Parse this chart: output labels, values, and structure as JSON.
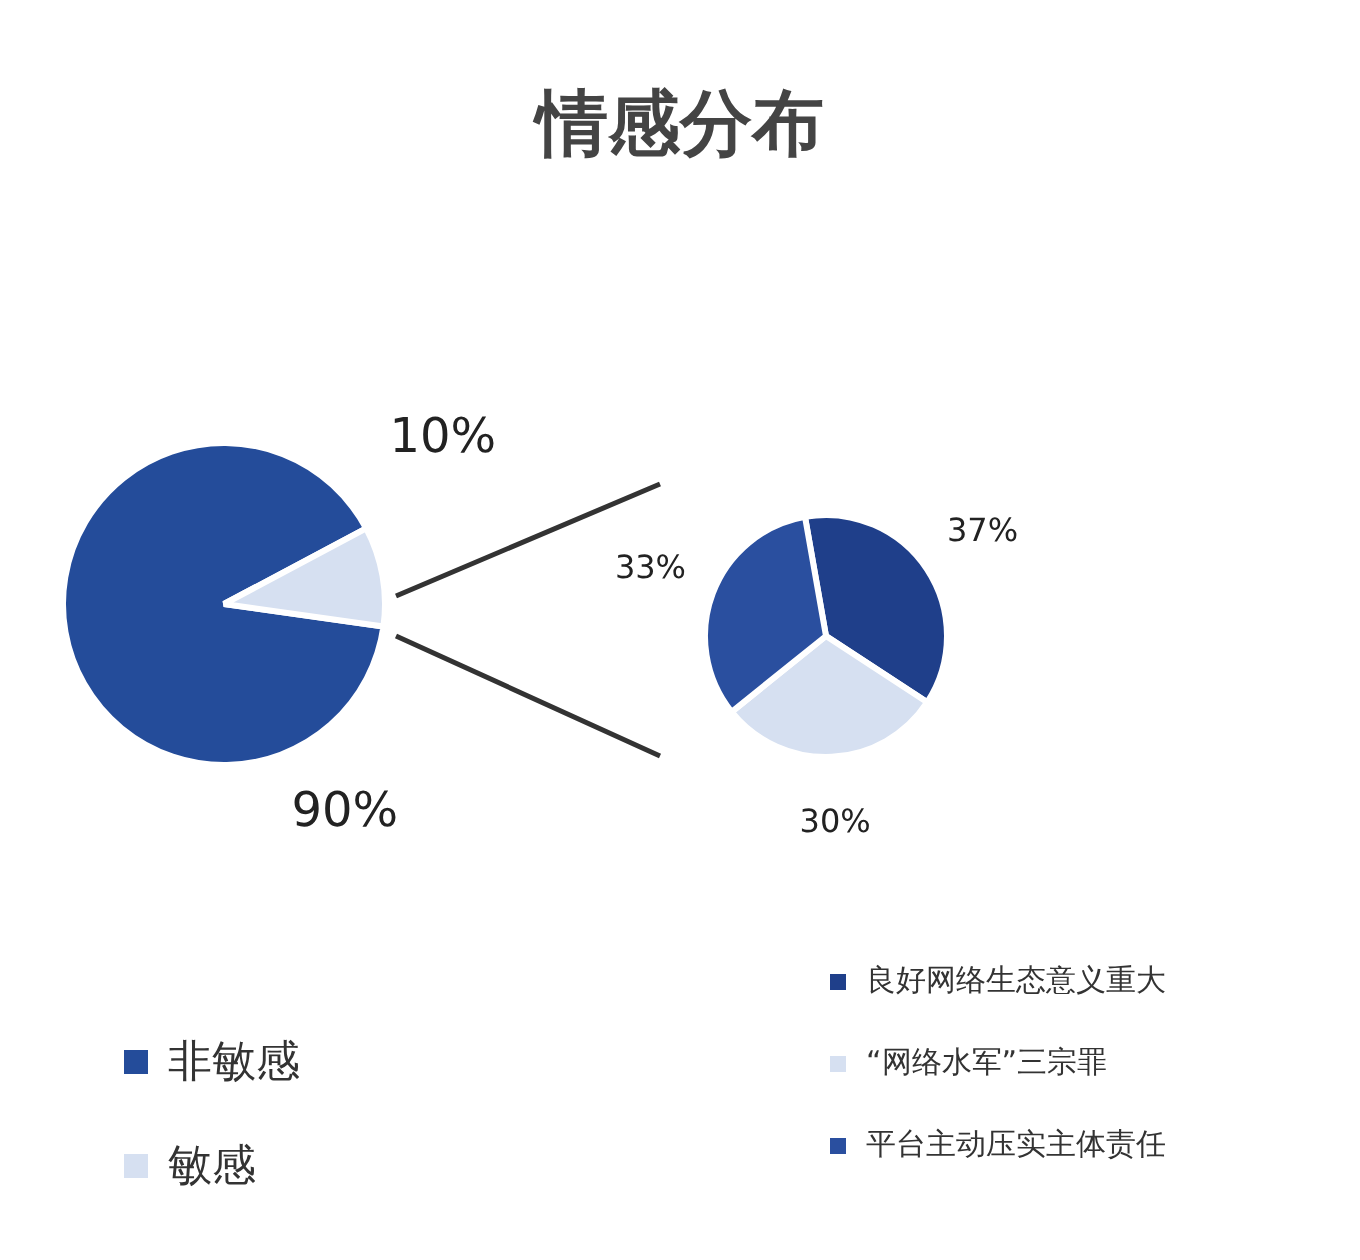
{
  "chart_data": [
    {
      "type": "pie",
      "title": "情感分布",
      "categories": [
        "非敏感",
        "敏感"
      ],
      "values": [
        90,
        10
      ],
      "colors": [
        "#244c9a",
        "#d6e0f1"
      ],
      "value_labels": [
        "90%",
        "10%"
      ],
      "legend": "bottom left"
    },
    {
      "type": "pie",
      "categories": [
        "良好网络生态意义重大",
        "“网络水军”三宗罪",
        "平台主动压实主体责任"
      ],
      "values": [
        37,
        30,
        33
      ],
      "colors": [
        "#1f3f8a",
        "#d6e0f1",
        "#2a4f9f"
      ],
      "value_labels": [
        "37%",
        "30%",
        "33%"
      ],
      "legend": "bottom right"
    }
  ]
}
